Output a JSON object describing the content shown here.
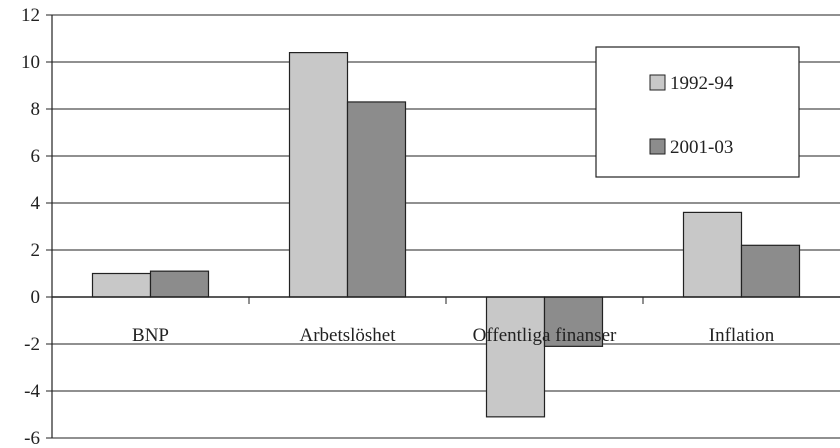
{
  "chart_data": {
    "type": "bar",
    "categories": [
      "BNP",
      "Arbetslöshet",
      "Offentliga finanser",
      "Inflation"
    ],
    "series": [
      {
        "name": "1992-94",
        "values": [
          1.0,
          10.4,
          -5.1,
          3.6
        ],
        "color": "#c8c8c8"
      },
      {
        "name": "2001-03",
        "values": [
          1.1,
          8.3,
          -2.1,
          2.2
        ],
        "color": "#8c8c8c"
      }
    ],
    "ylim": [
      -6,
      12
    ],
    "yticks": [
      "12",
      "10",
      "8",
      "6",
      "4",
      "2",
      "0",
      "-2",
      "-4",
      "-6"
    ],
    "grid": true,
    "legend": "top-right"
  }
}
